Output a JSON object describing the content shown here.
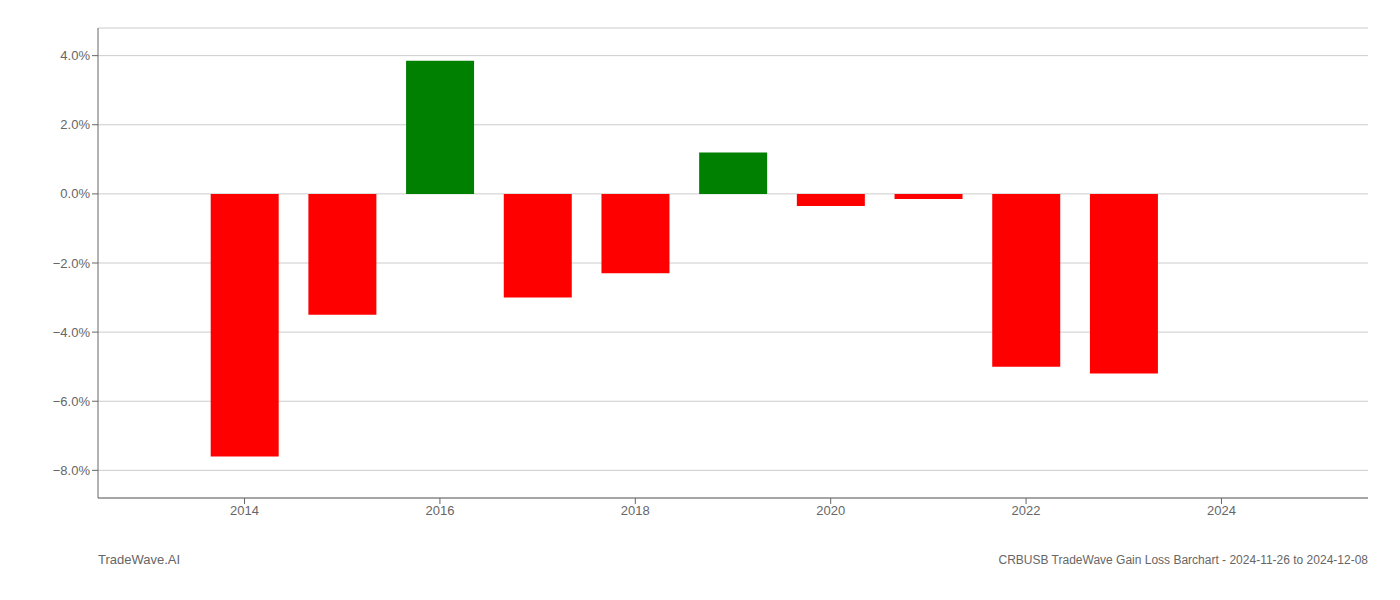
{
  "chart_data": {
    "type": "bar",
    "title": "CRBUSB TradeWave Gain Loss Barchart - 2024-11-26 to 2024-12-08",
    "annotations": [
      "TradeWave.AI"
    ],
    "x": [
      2014,
      2015,
      2016,
      2017,
      2018,
      2019,
      2020,
      2021,
      2022,
      2023
    ],
    "values": [
      -7.6,
      -3.5,
      3.85,
      -3.0,
      -2.3,
      1.2,
      -0.35,
      -0.15,
      -5.0,
      -5.2
    ],
    "colors": [
      "red",
      "red",
      "green",
      "red",
      "red",
      "green",
      "red",
      "red",
      "red",
      "red"
    ],
    "xlim": [
      2012.5,
      2025.5
    ],
    "ylim": [
      -8.8,
      4.8
    ],
    "xticks": [
      2014,
      2016,
      2018,
      2020,
      2022,
      2024
    ],
    "yticks": [
      {
        "value": -8.0,
        "label": "−8.0%"
      },
      {
        "value": -6.0,
        "label": "−6.0%"
      },
      {
        "value": -4.0,
        "label": "−4.0%"
      },
      {
        "value": -2.0,
        "label": "−2.0%"
      },
      {
        "value": 0.0,
        "label": "0.0%"
      },
      {
        "value": 2.0,
        "label": "2.0%"
      },
      {
        "value": 4.0,
        "label": "4.0%"
      }
    ],
    "grid": true
  }
}
